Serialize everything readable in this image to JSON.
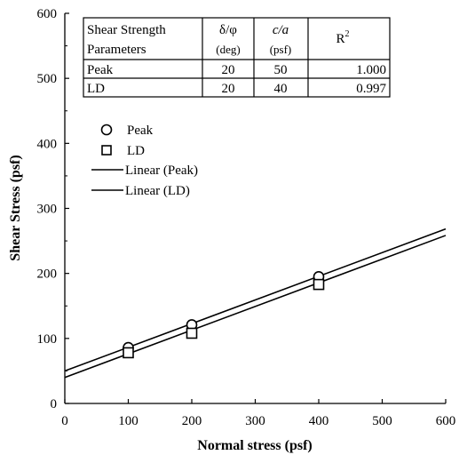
{
  "chart_data": {
    "type": "scatter",
    "xlabel": "Normal stress (psf)",
    "ylabel": "Shear Stress (psf)",
    "xlim": [
      0,
      600
    ],
    "ylim": [
      0,
      600
    ],
    "xticks": [
      "0",
      "100",
      "200",
      "300",
      "400",
      "500",
      "600"
    ],
    "yticks": [
      "0",
      "100",
      "200",
      "300",
      "400",
      "500",
      "600"
    ],
    "grid": false,
    "series": [
      {
        "name": "Peak",
        "marker": "circle",
        "x": [
          100,
          200,
          400
        ],
        "y": [
          86,
          121,
          195
        ]
      },
      {
        "name": "LD",
        "marker": "square",
        "x": [
          100,
          200,
          400
        ],
        "y": [
          78,
          108,
          183
        ]
      }
    ],
    "fit_lines": [
      {
        "name": "Linear (Peak)",
        "intercept": 50,
        "slope": 0.364
      },
      {
        "name": "Linear (LD)",
        "intercept": 40,
        "slope": 0.364
      }
    ],
    "table": {
      "header": [
        "Shear Strength Parameters",
        "δ/φ (deg)",
        "c/a (psf)",
        "R2"
      ],
      "header_lines": [
        [
          "Shear Strength",
          "Parameters"
        ],
        [
          "δ/φ",
          "(deg)"
        ],
        [
          "c/a",
          "(psf)"
        ],
        [
          "R",
          "2"
        ]
      ],
      "rows": [
        [
          "Peak",
          "20",
          "50",
          "1.000"
        ],
        [
          "LD",
          "20",
          "40",
          "0.997"
        ]
      ]
    },
    "legend": {
      "placement": "upper-left",
      "entries": [
        "Peak",
        "LD",
        "Linear (Peak)",
        "Linear (LD)"
      ]
    }
  }
}
